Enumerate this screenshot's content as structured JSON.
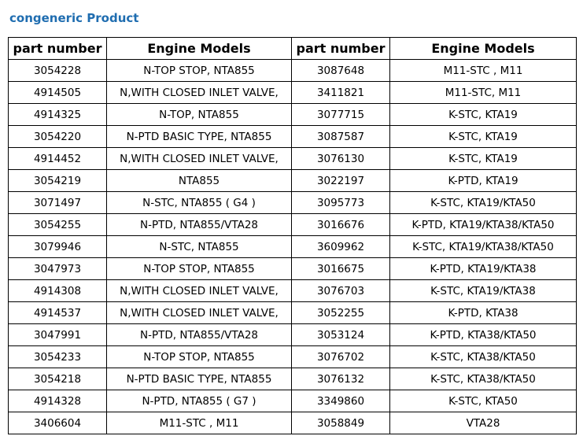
{
  "title": "congeneric Product",
  "headers": [
    "part number",
    "Engine Models",
    "part number",
    "Engine Models"
  ],
  "rows": [
    [
      "3054228",
      "N-TOP STOP, NTA855",
      "3087648",
      "M11-STC , M11"
    ],
    [
      "4914505",
      "N,WITH CLOSED INLET VALVE,",
      "3411821",
      "M11-STC, M11"
    ],
    [
      "4914325",
      "N-TOP, NTA855",
      "3077715",
      "K-STC, KTA19"
    ],
    [
      "3054220",
      "N-PTD BASIC TYPE, NTA855",
      "3087587",
      "K-STC, KTA19"
    ],
    [
      "4914452",
      "N,WITH CLOSED INLET VALVE,",
      "3076130",
      "K-STC, KTA19"
    ],
    [
      "3054219",
      "NTA855",
      "3022197",
      "K-PTD, KTA19"
    ],
    [
      "3071497",
      "N-STC, NTA855 ( G4 )",
      "3095773",
      "K-STC, KTA19/KTA50"
    ],
    [
      "3054255",
      "N-PTD, NTA855/VTA28",
      "3016676",
      "K-PTD, KTA19/KTA38/KTA50"
    ],
    [
      "3079946",
      "N-STC, NTA855",
      "3609962",
      "K-STC, KTA19/KTA38/KTA50"
    ],
    [
      "3047973",
      "N-TOP STOP, NTA855",
      "3016675",
      "K-PTD, KTA19/KTA38"
    ],
    [
      "4914308",
      "N,WITH CLOSED INLET VALVE,",
      "3076703",
      "K-STC, KTA19/KTA38"
    ],
    [
      "4914537",
      "N,WITH CLOSED INLET VALVE,",
      "3052255",
      "K-PTD, KTA38"
    ],
    [
      "3047991",
      "N-PTD, NTA855/VTA28",
      "3053124",
      "K-PTD, KTA38/KTA50"
    ],
    [
      "3054233",
      "N-TOP STOP, NTA855",
      "3076702",
      "K-STC, KTA38/KTA50"
    ],
    [
      "3054218",
      "N-PTD BASIC TYPE, NTA855",
      "3076132",
      "K-STC, KTA38/KTA50"
    ],
    [
      "4914328",
      "N-PTD, NTA855 ( G7 )",
      "3349860",
      "K-STC, KTA50"
    ],
    [
      "3406604",
      "M11-STC , M11",
      "3058849",
      "VTA28"
    ]
  ]
}
